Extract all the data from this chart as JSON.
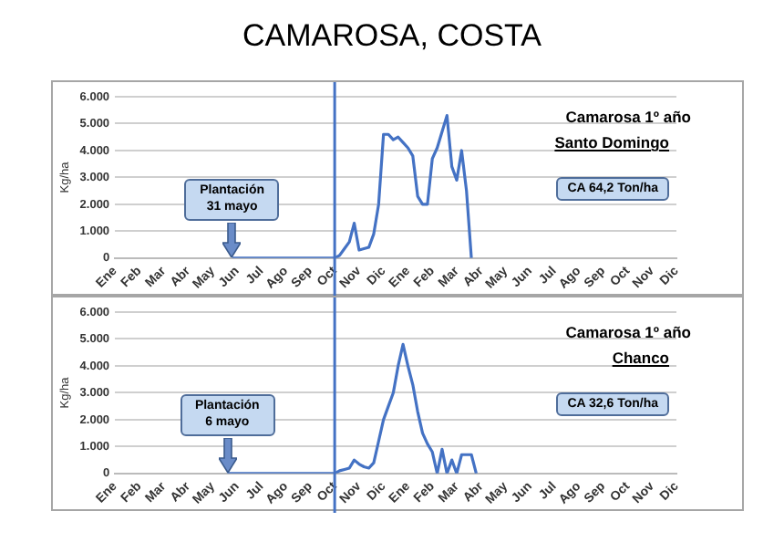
{
  "chart_data": [
    {
      "type": "line",
      "title": "CAMAROSA, COSTA",
      "ylabel": "Kg/ha",
      "color": "#4472c4",
      "grid": "y",
      "legend": false,
      "marker": "none",
      "categories": [
        "Ene",
        null,
        null,
        null,
        null,
        "Feb",
        null,
        null,
        null,
        null,
        "Mar",
        null,
        null,
        null,
        null,
        "Abr",
        null,
        null,
        null,
        null,
        "May",
        null,
        null,
        null,
        null,
        "Jun",
        null,
        null,
        null,
        null,
        "Jul",
        null,
        null,
        null,
        null,
        "Ago",
        null,
        null,
        null,
        null,
        "Sep",
        null,
        null,
        null,
        null,
        "Oct",
        null,
        null,
        null,
        null,
        "Nov",
        null,
        null,
        null,
        null,
        "Dic",
        null,
        null,
        null,
        null,
        "Ene",
        null,
        null,
        null,
        null,
        "Feb",
        null,
        null,
        null,
        null,
        "Mar",
        null,
        null,
        null,
        null,
        "Abr",
        null,
        null,
        null,
        null,
        "May",
        null,
        null,
        null,
        null,
        "Jun",
        null,
        null,
        null,
        null,
        "Jul",
        null,
        null,
        null,
        null,
        "Ago",
        null,
        null,
        null,
        null,
        "Sep",
        null,
        null,
        null,
        null,
        "Oct",
        null,
        null,
        null,
        null,
        "Nov",
        null,
        null,
        null,
        null,
        "Dic"
      ],
      "values": [
        null,
        null,
        null,
        null,
        null,
        null,
        null,
        null,
        null,
        null,
        null,
        null,
        null,
        null,
        null,
        null,
        null,
        null,
        null,
        null,
        null,
        null,
        null,
        null,
        0,
        0,
        0,
        0,
        0,
        0,
        0,
        0,
        0,
        0,
        0,
        0,
        0,
        0,
        0,
        0,
        0,
        0,
        0,
        0,
        0,
        0,
        100,
        350,
        600,
        1300,
        300,
        350,
        400,
        900,
        2000,
        4600,
        4600,
        4400,
        4500,
        4300,
        4100,
        3800,
        2300,
        2000,
        2000,
        3700,
        4100,
        4700,
        5300,
        3400,
        2900,
        4000,
        2500,
        0,
        null,
        null,
        null,
        null,
        null,
        null,
        null,
        null,
        null,
        null,
        null,
        null,
        null,
        null,
        null,
        null,
        null,
        null,
        null,
        null,
        null,
        null,
        null,
        null,
        null,
        null,
        null,
        null,
        null,
        null,
        null,
        null,
        null,
        null,
        null,
        null,
        null,
        null,
        null,
        null,
        null,
        null
      ],
      "ylim": [
        0,
        6000
      ],
      "yticks": [
        {
          "value": 0,
          "label": "0"
        },
        {
          "value": 1000,
          "label": "1.000"
        },
        {
          "value": 2000,
          "label": "2.000"
        },
        {
          "value": 3000,
          "label": "3.000"
        },
        {
          "value": 4000,
          "label": "4.000"
        },
        {
          "value": 5000,
          "label": "5.000"
        },
        {
          "value": 6000,
          "label": "6.000"
        }
      ],
      "ref_lines": [
        {
          "axis": "x",
          "value": "Oct",
          "color": "#4472c4"
        }
      ],
      "annotations": [
        "Camarosa 1º año",
        "Santo Domingo",
        "CA 64,2 Ton/ha",
        "Plantación 31 mayo"
      ]
    },
    {
      "type": "line",
      "ylabel": "Kg/ha",
      "color": "#4472c4",
      "grid": "y",
      "legend": false,
      "marker": "none",
      "categories": [
        "Ene",
        null,
        null,
        null,
        null,
        "Feb",
        null,
        null,
        null,
        null,
        "Mar",
        null,
        null,
        null,
        null,
        "Abr",
        null,
        null,
        null,
        null,
        "May",
        null,
        null,
        null,
        null,
        "Jun",
        null,
        null,
        null,
        null,
        "Jul",
        null,
        null,
        null,
        null,
        "Ago",
        null,
        null,
        null,
        null,
        "Sep",
        null,
        null,
        null,
        null,
        "Oct",
        null,
        null,
        null,
        null,
        "Nov",
        null,
        null,
        null,
        null,
        "Dic",
        null,
        null,
        null,
        null,
        "Ene",
        null,
        null,
        null,
        null,
        "Feb",
        null,
        null,
        null,
        null,
        "Mar",
        null,
        null,
        null,
        null,
        "Abr",
        null,
        null,
        null,
        null,
        "May",
        null,
        null,
        null,
        null,
        "Jun",
        null,
        null,
        null,
        null,
        "Jul",
        null,
        null,
        null,
        null,
        "Ago",
        null,
        null,
        null,
        null,
        "Sep",
        null,
        null,
        null,
        null,
        "Oct",
        null,
        null,
        null,
        null,
        "Nov",
        null,
        null,
        null,
        null,
        "Dic"
      ],
      "values": [
        null,
        null,
        null,
        null,
        null,
        null,
        null,
        null,
        null,
        null,
        null,
        null,
        null,
        null,
        null,
        null,
        null,
        null,
        null,
        null,
        null,
        null,
        null,
        0,
        0,
        0,
        0,
        0,
        0,
        0,
        0,
        0,
        0,
        0,
        0,
        0,
        0,
        0,
        0,
        0,
        0,
        0,
        0,
        0,
        0,
        0,
        100,
        150,
        200,
        500,
        350,
        250,
        200,
        400,
        1200,
        2000,
        2500,
        3000,
        4000,
        4800,
        4000,
        3300,
        2300,
        1500,
        1100,
        800,
        0,
        900,
        0,
        500,
        0,
        700,
        700,
        700,
        0,
        null,
        null,
        null,
        null,
        null,
        null,
        null,
        null,
        null,
        null,
        null,
        null,
        null,
        null,
        null,
        null,
        null,
        null,
        null,
        null,
        null,
        null,
        null,
        null,
        null,
        null,
        null,
        null,
        null,
        null,
        null,
        null,
        null,
        null,
        null,
        null,
        null,
        null,
        null,
        null,
        null
      ],
      "ylim": [
        0,
        6000
      ],
      "yticks": [
        {
          "value": 0,
          "label": "0"
        },
        {
          "value": 1000,
          "label": "1.000"
        },
        {
          "value": 2000,
          "label": "2.000"
        },
        {
          "value": 3000,
          "label": "3.000"
        },
        {
          "value": 4000,
          "label": "4.000"
        },
        {
          "value": 5000,
          "label": "5.000"
        },
        {
          "value": 6000,
          "label": "6.000"
        }
      ],
      "ref_lines": [
        {
          "axis": "x",
          "value": "Oct",
          "color": "#4472c4"
        }
      ],
      "annotations": [
        "Camarosa 1º año",
        "Chanco",
        "CA 32,6 Ton/ha",
        "Plantación 6 mayo"
      ]
    }
  ]
}
